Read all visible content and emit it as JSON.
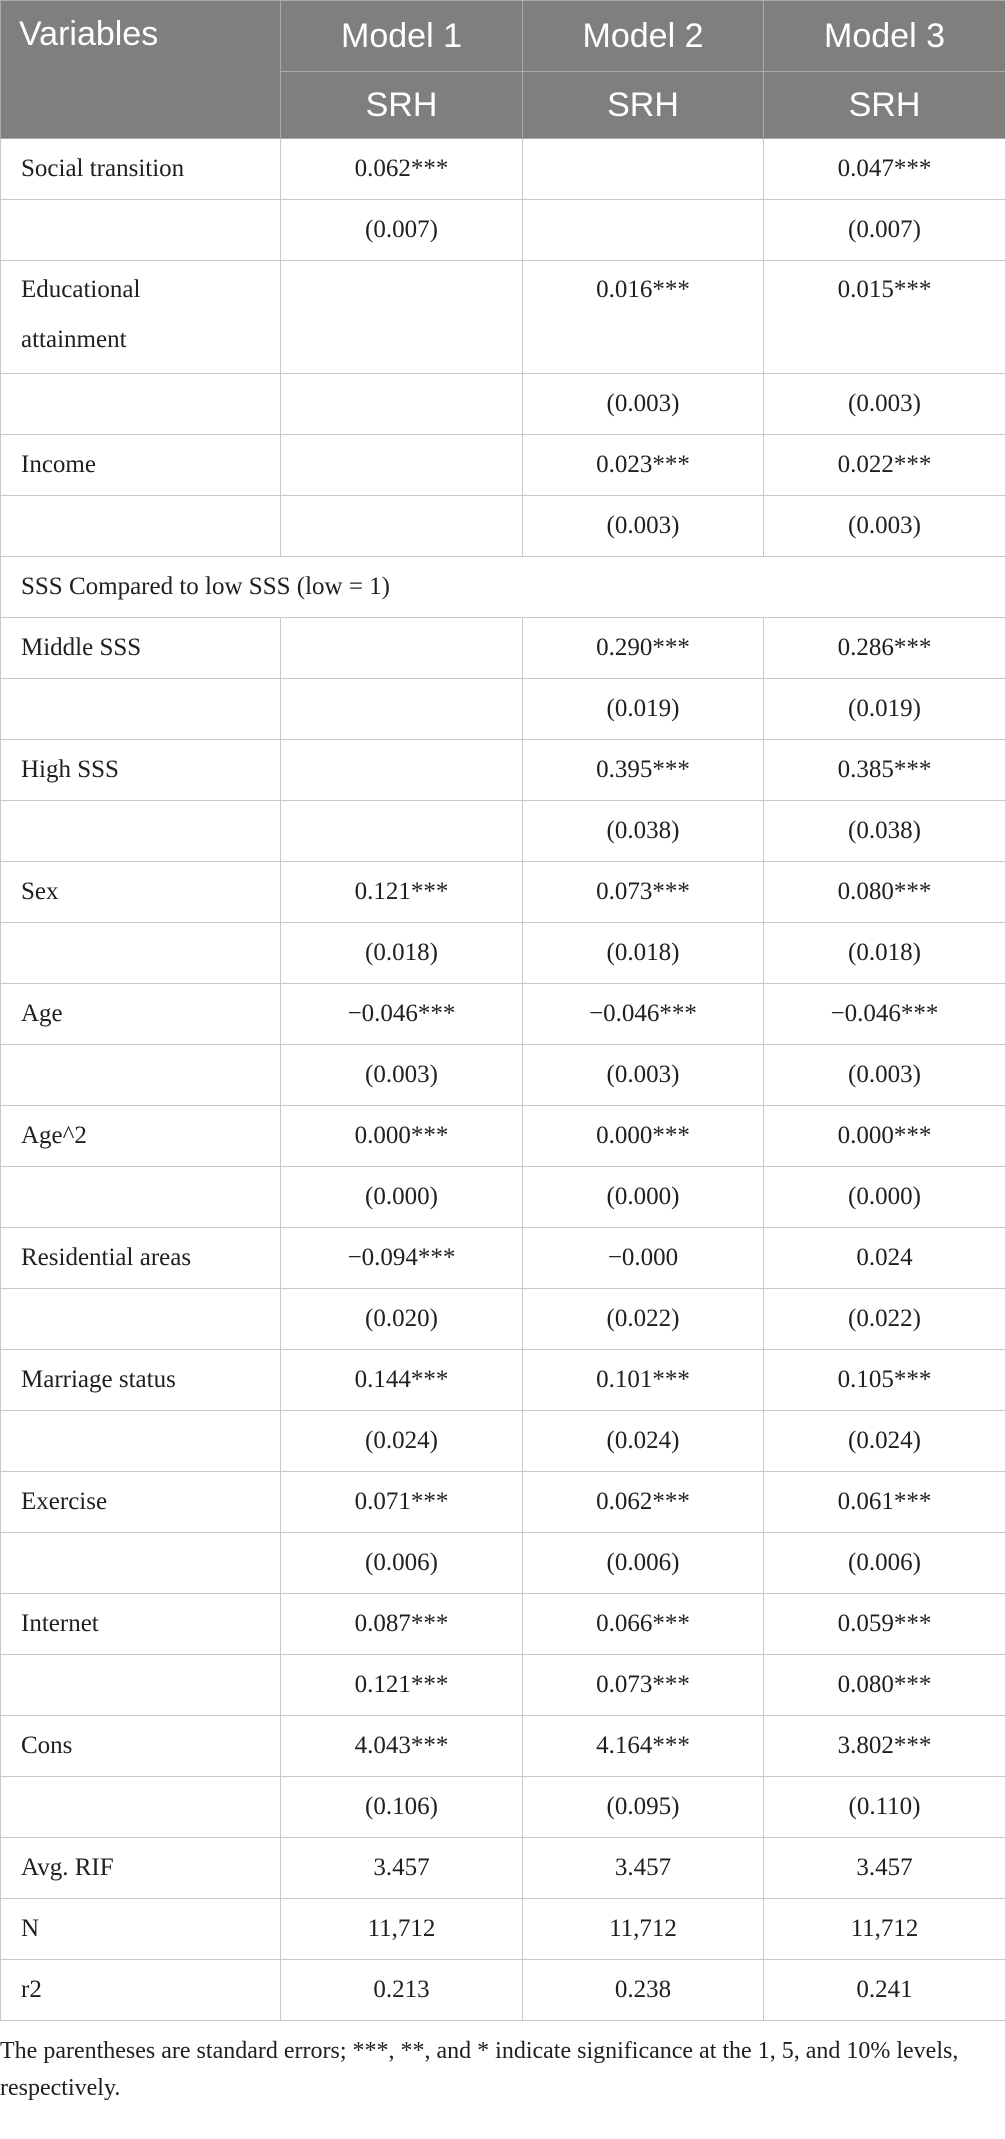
{
  "header": {
    "variables_label": "Variables",
    "models": [
      "Model 1",
      "Model 2",
      "Model 3"
    ],
    "dependent": [
      "SRH",
      "SRH",
      "SRH"
    ]
  },
  "rows": [
    {
      "label": "Social transition",
      "values": [
        "0.062***",
        "",
        "0.047***"
      ]
    },
    {
      "label": "",
      "values": [
        "(0.007)",
        "",
        "(0.007)"
      ]
    },
    {
      "label": "Educational attainment",
      "values": [
        "",
        "0.016***",
        "0.015***"
      ],
      "tall": true
    },
    {
      "label": "",
      "values": [
        "",
        "(0.003)",
        "(0.003)"
      ]
    },
    {
      "label": "Income",
      "values": [
        "",
        "0.023***",
        "0.022***"
      ]
    },
    {
      "label": "",
      "values": [
        "",
        "(0.003)",
        "(0.003)"
      ]
    },
    {
      "label": "SSS Compared to low SSS (low = 1)",
      "values": [],
      "span": true
    },
    {
      "label": "Middle SSS",
      "values": [
        "",
        "0.290***",
        "0.286***"
      ]
    },
    {
      "label": "",
      "values": [
        "",
        "(0.019)",
        "(0.019)"
      ]
    },
    {
      "label": "High SSS",
      "values": [
        "",
        "0.395***",
        "0.385***"
      ]
    },
    {
      "label": "",
      "values": [
        "",
        "(0.038)",
        "(0.038)"
      ]
    },
    {
      "label": "Sex",
      "values": [
        "0.121***",
        "0.073***",
        "0.080***"
      ]
    },
    {
      "label": "",
      "values": [
        "(0.018)",
        "(0.018)",
        "(0.018)"
      ]
    },
    {
      "label": "Age",
      "values": [
        "−0.046***",
        "−0.046***",
        "−0.046***"
      ]
    },
    {
      "label": "",
      "values": [
        "(0.003)",
        "(0.003)",
        "(0.003)"
      ]
    },
    {
      "label": "Age^2",
      "values": [
        "0.000***",
        "0.000***",
        "0.000***"
      ]
    },
    {
      "label": "",
      "values": [
        "(0.000)",
        "(0.000)",
        "(0.000)"
      ]
    },
    {
      "label": "Residential areas",
      "values": [
        "−0.094***",
        "−0.000",
        "0.024"
      ]
    },
    {
      "label": "",
      "values": [
        "(0.020)",
        "(0.022)",
        "(0.022)"
      ]
    },
    {
      "label": "Marriage status",
      "values": [
        "0.144***",
        "0.101***",
        "0.105***"
      ]
    },
    {
      "label": "",
      "values": [
        "(0.024)",
        "(0.024)",
        "(0.024)"
      ]
    },
    {
      "label": "Exercise",
      "values": [
        "0.071***",
        "0.062***",
        "0.061***"
      ]
    },
    {
      "label": "",
      "values": [
        "(0.006)",
        "(0.006)",
        "(0.006)"
      ]
    },
    {
      "label": "Internet",
      "values": [
        "0.087***",
        "0.066***",
        "0.059***"
      ]
    },
    {
      "label": "",
      "values": [
        "0.121***",
        "0.073***",
        "0.080***"
      ]
    },
    {
      "label": "Cons",
      "values": [
        "4.043***",
        "4.164***",
        "3.802***"
      ]
    },
    {
      "label": "",
      "values": [
        "(0.106)",
        "(0.095)",
        "(0.110)"
      ]
    },
    {
      "label": "Avg. RIF",
      "values": [
        "3.457",
        "3.457",
        "3.457"
      ]
    },
    {
      "label": "N",
      "values": [
        "11,712",
        "11,712",
        "11,712"
      ]
    },
    {
      "label": "r2",
      "values": [
        "0.213",
        "0.238",
        "0.241"
      ]
    }
  ],
  "note": "The parentheses are standard errors; ***, **, and * indicate significance at the 1, 5, and 10% levels, respectively."
}
